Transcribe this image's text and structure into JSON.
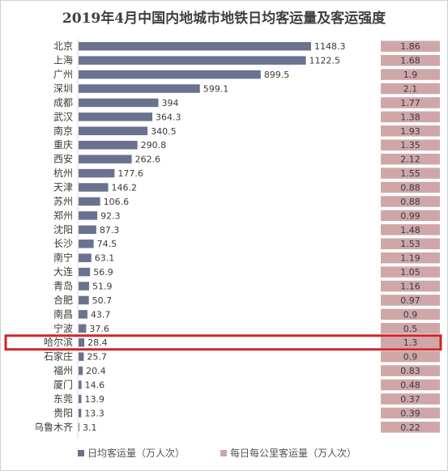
{
  "colors": {
    "bar": "#6b7290",
    "intensity_bg": "#cfa7a8",
    "highlight": "#d0252a",
    "text": "#3a3a3a"
  },
  "chart_data": {
    "type": "bar",
    "orientation": "horizontal",
    "title": "2019年4月中国内地城市地铁日均客运量及客运强度",
    "categories": [
      "北京",
      "上海",
      "广州",
      "深圳",
      "成都",
      "武汉",
      "南京",
      "重庆",
      "西安",
      "杭州",
      "天津",
      "苏州",
      "郑州",
      "沈阳",
      "长沙",
      "南宁",
      "大连",
      "青岛",
      "合肥",
      "南昌",
      "宁波",
      "哈尔滨",
      "石家庄",
      "福州",
      "厦门",
      "东莞",
      "贵阳",
      "乌鲁木齐"
    ],
    "series": [
      {
        "name": "日均客运量（万人次）",
        "values": [
          1148.3,
          1122.5,
          899.5,
          599.1,
          394,
          364.3,
          340.5,
          290.8,
          262.6,
          177.6,
          146.2,
          106.6,
          92.3,
          87.3,
          74.5,
          63.1,
          56.9,
          51.9,
          50.7,
          43.7,
          37.6,
          28.4,
          25.7,
          20.4,
          14.6,
          13.9,
          13.3,
          3.1
        ],
        "labels": [
          "1148.3",
          "1122.5",
          "899.5",
          "599.1",
          "394",
          "364.3",
          "340.5",
          "290.8",
          "262.6",
          "177.6",
          "146.2",
          "106.6",
          "92.3",
          "87.3",
          "74.5",
          "63.1",
          "56.9",
          "51.9",
          "50.7",
          "43.7",
          "37.6",
          "28.4",
          "25.7",
          "20.4",
          "14.6",
          "13.9",
          "13.3",
          "3.1"
        ]
      },
      {
        "name": "每日每公里客运量（万人次）",
        "values": [
          1.86,
          1.68,
          1.9,
          2.1,
          1.77,
          1.38,
          1.93,
          1.35,
          2.12,
          1.55,
          0.88,
          0.88,
          0.99,
          1.48,
          1.53,
          1.19,
          1.05,
          1.16,
          0.97,
          0.9,
          0.5,
          1.3,
          0.9,
          0.83,
          0.48,
          0.37,
          0.39,
          0.22
        ],
        "labels": [
          "1.86",
          "1.68",
          "1.9",
          "2.1",
          "1.77",
          "1.38",
          "1.93",
          "1.35",
          "2.12",
          "1.55",
          "0.88",
          "0.88",
          "0.99",
          "1.48",
          "1.53",
          "1.19",
          "1.05",
          "1.16",
          "0.97",
          "0.9",
          "0.5",
          "1.3",
          "0.9",
          "0.83",
          "0.48",
          "0.37",
          "0.39",
          "0.22"
        ]
      }
    ],
    "highlight_category": "哈尔滨",
    "legend_position": "bottom"
  }
}
